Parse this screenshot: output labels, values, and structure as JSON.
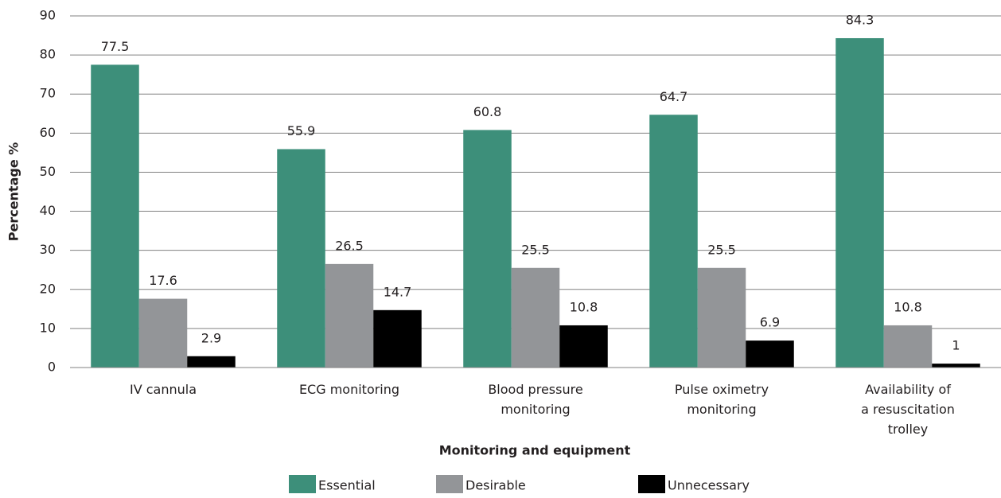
{
  "chart_data": {
    "type": "bar",
    "categories": [
      "IV cannula",
      "ECG monitoring",
      "Blood pressure monitoring",
      "Pulse oximetry monitoring",
      "Availability of a resuscitation trolley"
    ],
    "series": [
      {
        "name": "Essential",
        "color": "#3d8f7a",
        "values": [
          77.5,
          55.9,
          60.8,
          64.7,
          84.3
        ]
      },
      {
        "name": "Desirable",
        "color": "#939598",
        "values": [
          17.6,
          26.5,
          25.5,
          25.5,
          10.8
        ]
      },
      {
        "name": "Unnecessary",
        "color": "#000000",
        "values": [
          2.9,
          14.7,
          10.8,
          6.9,
          1
        ]
      }
    ],
    "ylim": [
      0,
      90
    ],
    "yticks": [
      0,
      10,
      20,
      30,
      40,
      50,
      60,
      70,
      80,
      90
    ],
    "y_label": "Percentage %",
    "x_label": "Monitoring and equipment",
    "grid": true,
    "legend": "bottom"
  }
}
